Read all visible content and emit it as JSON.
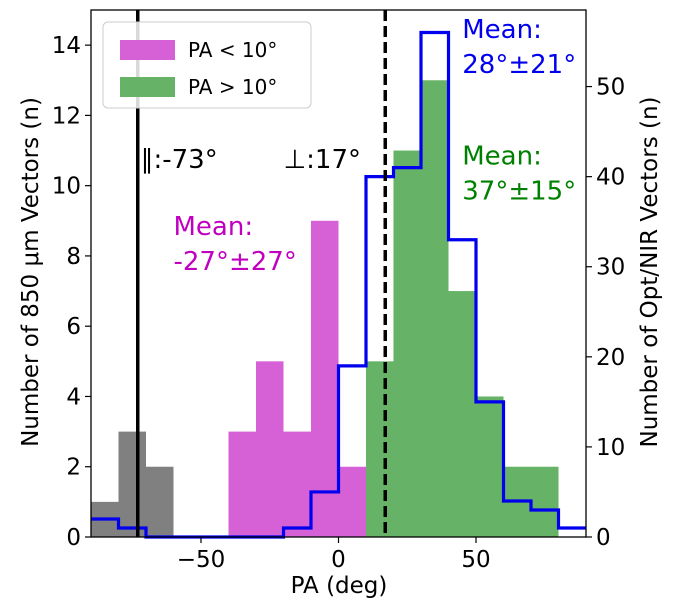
{
  "chart_data": {
    "type": "bar",
    "xlabel": "PA (deg)",
    "ylabel_left": "Number of 850 μm Vectors (n)",
    "ylabel_right": "Number of Opt/NIR Vectors (n)",
    "xlim": [
      -90,
      90
    ],
    "ylim_left": [
      0,
      15
    ],
    "ylim_right": [
      0,
      58.5
    ],
    "x_ticks": [
      -50,
      0,
      50
    ],
    "y_ticks_left": [
      0,
      2,
      4,
      6,
      8,
      10,
      12,
      14
    ],
    "y_ticks_right": [
      0,
      10,
      20,
      30,
      40,
      50
    ],
    "grid": false,
    "legend_position": "top-left",
    "legend": [
      {
        "label": "PA < 10°",
        "color": "#d660d6"
      },
      {
        "label": "PA > 10°",
        "color": "#66b266"
      }
    ],
    "bar_series": [
      {
        "color": "#808080",
        "bins": [
          {
            "x0": -90,
            "x1": -80,
            "value": 1
          },
          {
            "x0": -80,
            "x1": -70,
            "value": 3
          },
          {
            "x0": -70,
            "x1": -60,
            "value": 2
          }
        ]
      },
      {
        "name": "PA < 10°",
        "color": "#d660d6",
        "bins": [
          {
            "x0": -40,
            "x1": -30,
            "value": 3
          },
          {
            "x0": -30,
            "x1": -20,
            "value": 5
          },
          {
            "x0": -20,
            "x1": -10,
            "value": 3
          },
          {
            "x0": -10,
            "x1": 0,
            "value": 9
          },
          {
            "x0": 0,
            "x1": 10,
            "value": 2
          }
        ]
      },
      {
        "name": "PA > 10°",
        "color": "#66b266",
        "bins": [
          {
            "x0": 10,
            "x1": 20,
            "value": 5
          },
          {
            "x0": 20,
            "x1": 30,
            "value": 11
          },
          {
            "x0": 30,
            "x1": 40,
            "value": 13
          },
          {
            "x0": 40,
            "x1": 50,
            "value": 7
          },
          {
            "x0": 50,
            "x1": 60,
            "value": 4
          },
          {
            "x0": 60,
            "x1": 70,
            "value": 2
          },
          {
            "x0": 70,
            "x1": 80,
            "value": 2
          }
        ]
      }
    ],
    "step_series": {
      "color": "#0000ee",
      "axis": "right",
      "edges": [
        -90,
        -80,
        -70,
        -60,
        -50,
        -40,
        -30,
        -20,
        -10,
        0,
        10,
        20,
        30,
        40,
        50,
        60,
        70,
        80,
        90
      ],
      "values": [
        2,
        1,
        0,
        0,
        0,
        0,
        0,
        1,
        5,
        19,
        40,
        41,
        56,
        33,
        15,
        4,
        3,
        1
      ]
    },
    "vlines": [
      {
        "x": -73,
        "style": "solid",
        "color": "#000000"
      },
      {
        "x": 17,
        "style": "dashed",
        "color": "#000000"
      }
    ],
    "annotations": [
      {
        "text": "∥:-73°",
        "x": -72,
        "y": 10.5,
        "color": "#000000"
      },
      {
        "text": "⊥:17°",
        "x": -20,
        "y": 10.5,
        "color": "#000000"
      },
      {
        "line1": "Mean:",
        "line2": "-27°±27°",
        "x": -60,
        "y1": 8.6,
        "y2": 7.6,
        "color": "#c000c0"
      },
      {
        "line1": "Mean:",
        "line2": "28°±21°",
        "x": 45,
        "y1": 14.2,
        "y2": 13.2,
        "color": "#0000ee"
      },
      {
        "line1": "Mean:",
        "line2": "37°±15°",
        "x": 45,
        "y1": 10.6,
        "y2": 9.6,
        "color": "#008000"
      }
    ]
  }
}
